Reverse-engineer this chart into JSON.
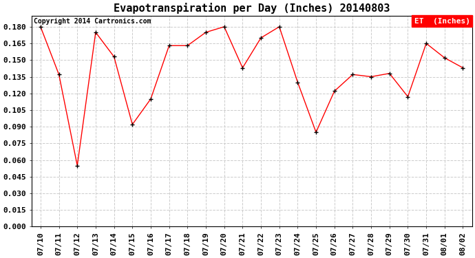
{
  "title": "Evapotranspiration per Day (Inches) 20140803",
  "copyright": "Copyright 2014 Cartronics.com",
  "legend_label": "ET  (Inches)",
  "dates": [
    "07/10",
    "07/11",
    "07/12",
    "07/13",
    "07/14",
    "07/15",
    "07/16",
    "07/17",
    "07/18",
    "07/19",
    "07/20",
    "07/21",
    "07/22",
    "07/23",
    "07/24",
    "07/25",
    "07/26",
    "07/27",
    "07/28",
    "07/29",
    "07/30",
    "07/31",
    "08/01",
    "08/02"
  ],
  "values": [
    0.18,
    0.137,
    0.055,
    0.175,
    0.153,
    0.092,
    0.115,
    0.163,
    0.163,
    0.175,
    0.18,
    0.143,
    0.17,
    0.18,
    0.13,
    0.085,
    0.122,
    0.137,
    0.135,
    0.138,
    0.117,
    0.165,
    0.152,
    0.143
  ],
  "ylim": [
    0.0,
    0.19
  ],
  "yticks": [
    0.0,
    0.015,
    0.03,
    0.045,
    0.06,
    0.075,
    0.09,
    0.105,
    0.12,
    0.135,
    0.15,
    0.165,
    0.18
  ],
  "line_color": "red",
  "marker_color": "black",
  "background_color": "#ffffff",
  "grid_color": "#cccccc",
  "title_fontsize": 11,
  "tick_fontsize": 8,
  "copyright_fontsize": 7,
  "legend_bg": "red",
  "legend_text_color": "white",
  "legend_fontsize": 8
}
